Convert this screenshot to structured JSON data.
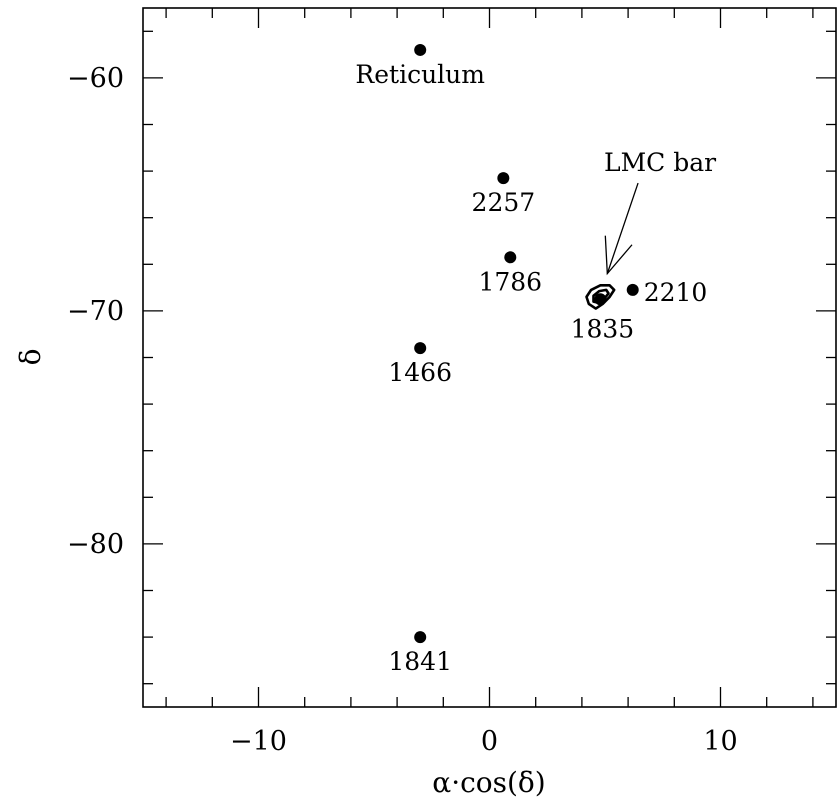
{
  "chart_data": {
    "type": "scatter",
    "title": "",
    "xlabel": "α·cos(δ)",
    "ylabel": "δ",
    "xlim": [
      -15,
      15
    ],
    "ylim": [
      -87,
      -57
    ],
    "grid": false,
    "x_ticks": [
      {
        "value": -10,
        "label": "−10"
      },
      {
        "value": 0,
        "label": "0"
      },
      {
        "value": 10,
        "label": "10"
      }
    ],
    "y_ticks": [
      {
        "value": -60,
        "label": "−60"
      },
      {
        "value": -70,
        "label": "−70"
      },
      {
        "value": -80,
        "label": "−80"
      }
    ],
    "points": [
      {
        "label": "Reticulum",
        "x": -3.0,
        "y": -58.8
      },
      {
        "label": "2257",
        "x": 0.6,
        "y": -64.3
      },
      {
        "label": "1786",
        "x": 0.9,
        "y": -67.7
      },
      {
        "label": "2210",
        "x": 6.2,
        "y": -69.1
      },
      {
        "label": "1835",
        "x": 4.8,
        "y": -69.5
      },
      {
        "label": "1466",
        "x": -3.0,
        "y": -71.6
      },
      {
        "label": "1841",
        "x": -3.0,
        "y": -84.0
      }
    ],
    "annotations": [
      {
        "text": "LMC bar",
        "x": 7.6,
        "y": -64.0,
        "arrow_to": {
          "x": 5.1,
          "y": -68.4
        }
      }
    ],
    "contours": [
      {
        "name": "LMC bar",
        "points": [
          [
            4.3,
            -69.7
          ],
          [
            4.2,
            -69.4
          ],
          [
            4.4,
            -69.1
          ],
          [
            4.8,
            -68.9
          ],
          [
            5.2,
            -68.9
          ],
          [
            5.4,
            -69.1
          ],
          [
            5.2,
            -69.4
          ],
          [
            4.9,
            -69.7
          ],
          [
            4.6,
            -69.9
          ]
        ]
      },
      {
        "name": "LMC bar",
        "points": [
          [
            4.5,
            -69.6
          ],
          [
            4.5,
            -69.35
          ],
          [
            4.75,
            -69.15
          ],
          [
            5.05,
            -69.1
          ],
          [
            5.15,
            -69.25
          ],
          [
            4.95,
            -69.5
          ],
          [
            4.7,
            -69.65
          ]
        ]
      }
    ]
  }
}
